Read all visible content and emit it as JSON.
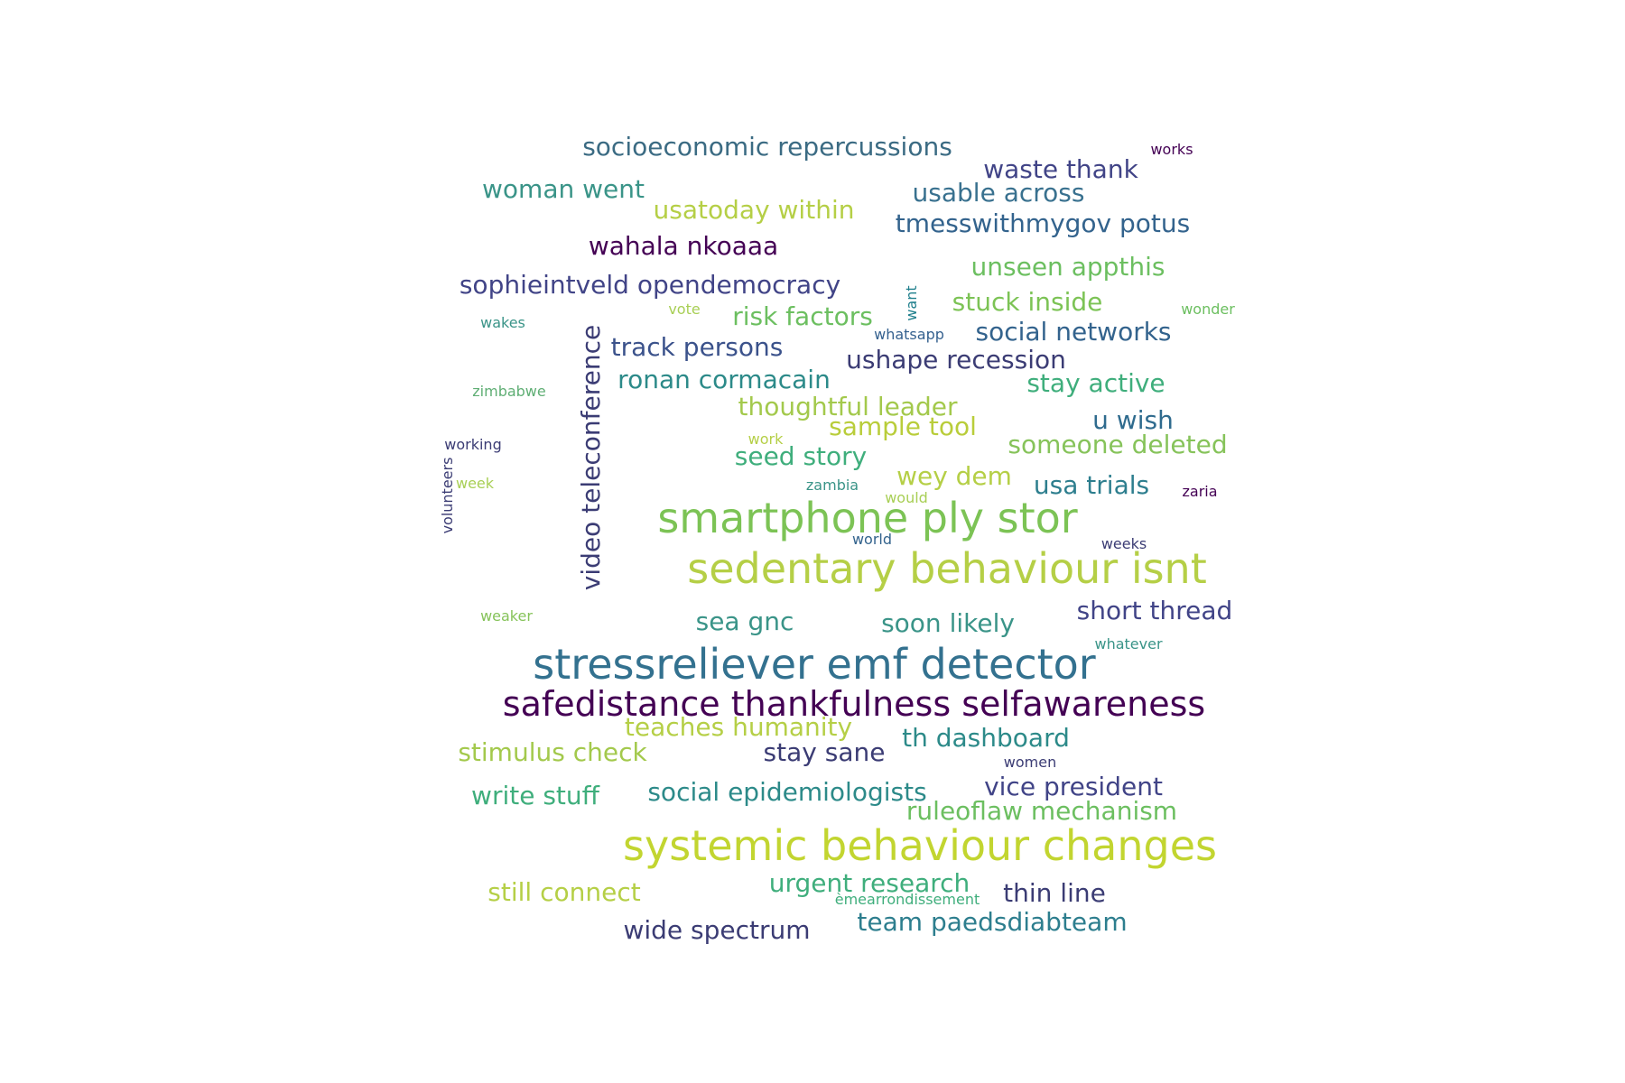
{
  "words": [
    {
      "text": "socioeconomic repercussions",
      "color": "#3b6b83"
    },
    {
      "text": "works",
      "color": "#440154"
    },
    {
      "text": "waste thank",
      "color": "#414487"
    },
    {
      "text": "woman went",
      "color": "#3a9488"
    },
    {
      "text": "usable across",
      "color": "#39718f"
    },
    {
      "text": "usatoday within",
      "color": "#b5cf46"
    },
    {
      "text": "tmesswithmygov potus",
      "color": "#33638d"
    },
    {
      "text": "wahala nkoaaa",
      "color": "#440154"
    },
    {
      "text": "unseen appthis",
      "color": "#6cbf60"
    },
    {
      "text": "sophieintveld opendemocracy",
      "color": "#414487"
    },
    {
      "text": "want",
      "color": "#1f7f8c"
    },
    {
      "text": "stuck inside",
      "color": "#7cc355"
    },
    {
      "text": "wonder",
      "color": "#6cbf60"
    },
    {
      "text": "vote",
      "color": "#a8cf55"
    },
    {
      "text": "risk factors",
      "color": "#6cbf60"
    },
    {
      "text": "wakes",
      "color": "#3a9488"
    },
    {
      "text": "whatsapp",
      "color": "#35618f"
    },
    {
      "text": "social networks",
      "color": "#33638d"
    },
    {
      "text": "video teleconference",
      "color": "#3b3c74"
    },
    {
      "text": "track persons",
      "color": "#3b528b"
    },
    {
      "text": "ushape recession",
      "color": "#3b3c74"
    },
    {
      "text": "ronan cormacain",
      "color": "#2c8a89"
    },
    {
      "text": "stay active",
      "color": "#3fae7c"
    },
    {
      "text": "zimbabwe",
      "color": "#5fae74"
    },
    {
      "text": "thoughtful leader",
      "color": "#a3c94c"
    },
    {
      "text": "sample tool",
      "color": "#b9cd3a"
    },
    {
      "text": "working",
      "color": "#3b3c74"
    },
    {
      "text": "work",
      "color": "#b5cf46"
    },
    {
      "text": "u wish",
      "color": "#2f6b8e"
    },
    {
      "text": "seed story",
      "color": "#3fae7c"
    },
    {
      "text": "someone deleted",
      "color": "#86c35a"
    },
    {
      "text": "week",
      "color": "#a8cf55"
    },
    {
      "text": "volunteers",
      "color": "#3b3c74"
    },
    {
      "text": "wey dem",
      "color": "#b5cf46"
    },
    {
      "text": "zambia",
      "color": "#3a9488"
    },
    {
      "text": "usa trials",
      "color": "#2d7e8e"
    },
    {
      "text": "would",
      "color": "#a8cf55"
    },
    {
      "text": "zaria",
      "color": "#440154"
    },
    {
      "text": "smartphone ply stor",
      "color": "#7cc355"
    },
    {
      "text": "world",
      "color": "#33638d"
    },
    {
      "text": "weeks",
      "color": "#3b3c74"
    },
    {
      "text": "sedentary behaviour isnt",
      "color": "#b5cf46"
    },
    {
      "text": "short thread",
      "color": "#414487"
    },
    {
      "text": "sea gnc",
      "color": "#3a9488"
    },
    {
      "text": "soon likely",
      "color": "#3a9488"
    },
    {
      "text": "weaker",
      "color": "#86c35a"
    },
    {
      "text": "whatever",
      "color": "#3a9488"
    },
    {
      "text": "stressreliever emf detector",
      "color": "#33718f"
    },
    {
      "text": "safedistance thankfulness selfawareness",
      "color": "#440154"
    },
    {
      "text": "teaches humanity",
      "color": "#b5cf46"
    },
    {
      "text": "th dashboard",
      "color": "#2c8a89"
    },
    {
      "text": "stimulus check",
      "color": "#a3c94c"
    },
    {
      "text": "stay sane",
      "color": "#3b3c74"
    },
    {
      "text": "women",
      "color": "#3b3c74"
    },
    {
      "text": "write stuff",
      "color": "#3fae7c"
    },
    {
      "text": "social epidemiologists",
      "color": "#2c8a89"
    },
    {
      "text": "vice president",
      "color": "#414487"
    },
    {
      "text": "ruleoflaw mechanism",
      "color": "#6cbf60"
    },
    {
      "text": "systemic behaviour changes",
      "color": "#c2d530"
    },
    {
      "text": "urgent research",
      "color": "#3fae7c"
    },
    {
      "text": "still connect",
      "color": "#b5cf46"
    },
    {
      "text": "èmearrondissement",
      "color": "#3fae7c"
    },
    {
      "text": "thin line",
      "color": "#3b3c74"
    },
    {
      "text": "team paedsdiabteam",
      "color": "#2d7e8e"
    },
    {
      "text": "wide spectrum",
      "color": "#3b3c74"
    }
  ]
}
